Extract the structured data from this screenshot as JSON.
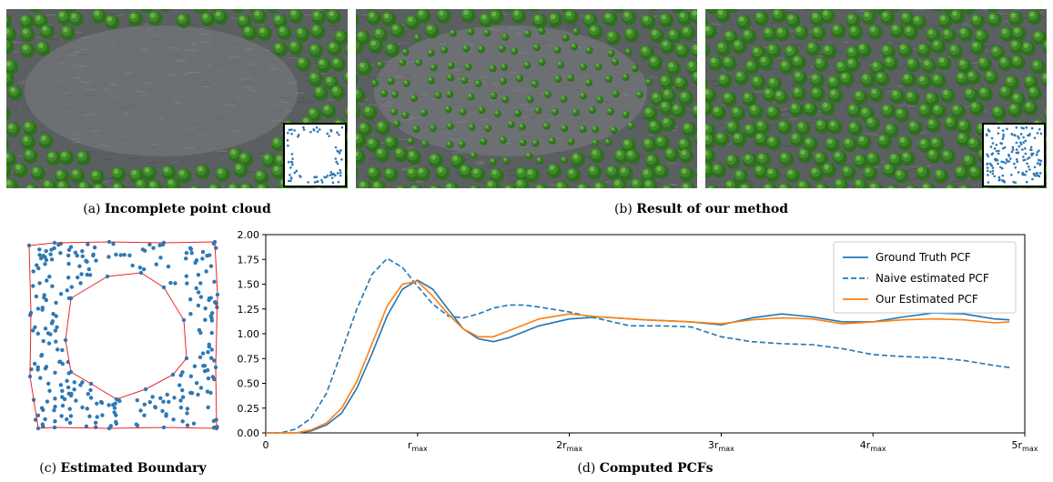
{
  "captions": {
    "a_tag": "(a)",
    "a_text": "Incomplete point cloud",
    "b_tag": "(b)",
    "b_text": "Result of our method",
    "c_tag": "(c)",
    "c_text": "Estimated Boundary",
    "d_tag": "(d)",
    "d_text": "Computed PCFs"
  },
  "colors": {
    "ground": "#5b5f62",
    "tree": "#3f8a2a",
    "dot": "#2e78b4",
    "boundary": "#e8262a",
    "series_gt": "#1f77b4",
    "series_naive": "#1f77b4",
    "series_ours": "#ff7f0e"
  },
  "chart_data": {
    "type": "line",
    "title": "",
    "xlabel": "",
    "ylabel": "",
    "xlim": [
      0,
      5
    ],
    "ylim": [
      0,
      2
    ],
    "xticks": [
      {
        "v": 0,
        "base": "0",
        "sub": ""
      },
      {
        "v": 1,
        "base": "r",
        "sub": "max"
      },
      {
        "v": 2,
        "base": "2r",
        "sub": "max"
      },
      {
        "v": 3,
        "base": "3r",
        "sub": "max"
      },
      {
        "v": 4,
        "base": "4r",
        "sub": "max"
      },
      {
        "v": 5,
        "base": "5r",
        "sub": "max"
      }
    ],
    "yticks": [
      "0.00",
      "0.25",
      "0.50",
      "0.75",
      "1.00",
      "1.25",
      "1.50",
      "1.75",
      "2.00"
    ],
    "legend_position": "top-right",
    "series": [
      {
        "name": "Ground Truth PCF",
        "style": "solid",
        "x": [
          0,
          0.2,
          0.3,
          0.4,
          0.5,
          0.6,
          0.7,
          0.8,
          0.9,
          1.0,
          1.1,
          1.2,
          1.3,
          1.4,
          1.5,
          1.6,
          1.8,
          2.0,
          2.2,
          2.5,
          2.8,
          3.0,
          3.2,
          3.4,
          3.6,
          3.8,
          4.0,
          4.2,
          4.4,
          4.6,
          4.8,
          4.9
        ],
        "y": [
          0,
          0,
          0.02,
          0.08,
          0.2,
          0.45,
          0.8,
          1.18,
          1.45,
          1.54,
          1.45,
          1.25,
          1.05,
          0.95,
          0.92,
          0.96,
          1.08,
          1.15,
          1.17,
          1.14,
          1.12,
          1.09,
          1.16,
          1.2,
          1.17,
          1.12,
          1.12,
          1.17,
          1.21,
          1.2,
          1.15,
          1.14
        ]
      },
      {
        "name": "Naive estimated PCF",
        "style": "dashed",
        "x": [
          0,
          0.1,
          0.2,
          0.3,
          0.4,
          0.5,
          0.6,
          0.7,
          0.8,
          0.9,
          1.0,
          1.1,
          1.2,
          1.3,
          1.4,
          1.5,
          1.6,
          1.7,
          1.8,
          2.0,
          2.2,
          2.4,
          2.6,
          2.8,
          3.0,
          3.2,
          3.4,
          3.6,
          3.8,
          4.0,
          4.2,
          4.4,
          4.6,
          4.8,
          4.9
        ],
        "y": [
          0,
          0,
          0.04,
          0.15,
          0.4,
          0.82,
          1.25,
          1.6,
          1.76,
          1.67,
          1.48,
          1.3,
          1.18,
          1.16,
          1.2,
          1.26,
          1.29,
          1.29,
          1.27,
          1.22,
          1.15,
          1.08,
          1.08,
          1.07,
          0.97,
          0.92,
          0.9,
          0.89,
          0.85,
          0.79,
          0.77,
          0.76,
          0.73,
          0.68,
          0.66
        ]
      },
      {
        "name": "Our Estimated PCF",
        "style": "solid",
        "x": [
          0,
          0.2,
          0.3,
          0.4,
          0.5,
          0.6,
          0.7,
          0.8,
          0.9,
          1.0,
          1.1,
          1.2,
          1.3,
          1.4,
          1.5,
          1.6,
          1.8,
          2.0,
          2.2,
          2.5,
          2.8,
          3.0,
          3.2,
          3.4,
          3.6,
          3.8,
          4.0,
          4.2,
          4.4,
          4.6,
          4.8,
          4.9
        ],
        "y": [
          0,
          0,
          0.03,
          0.1,
          0.25,
          0.52,
          0.9,
          1.28,
          1.5,
          1.53,
          1.38,
          1.2,
          1.05,
          0.97,
          0.97,
          1.03,
          1.15,
          1.2,
          1.17,
          1.14,
          1.12,
          1.1,
          1.14,
          1.16,
          1.15,
          1.1,
          1.12,
          1.14,
          1.15,
          1.14,
          1.11,
          1.12
        ]
      }
    ]
  }
}
